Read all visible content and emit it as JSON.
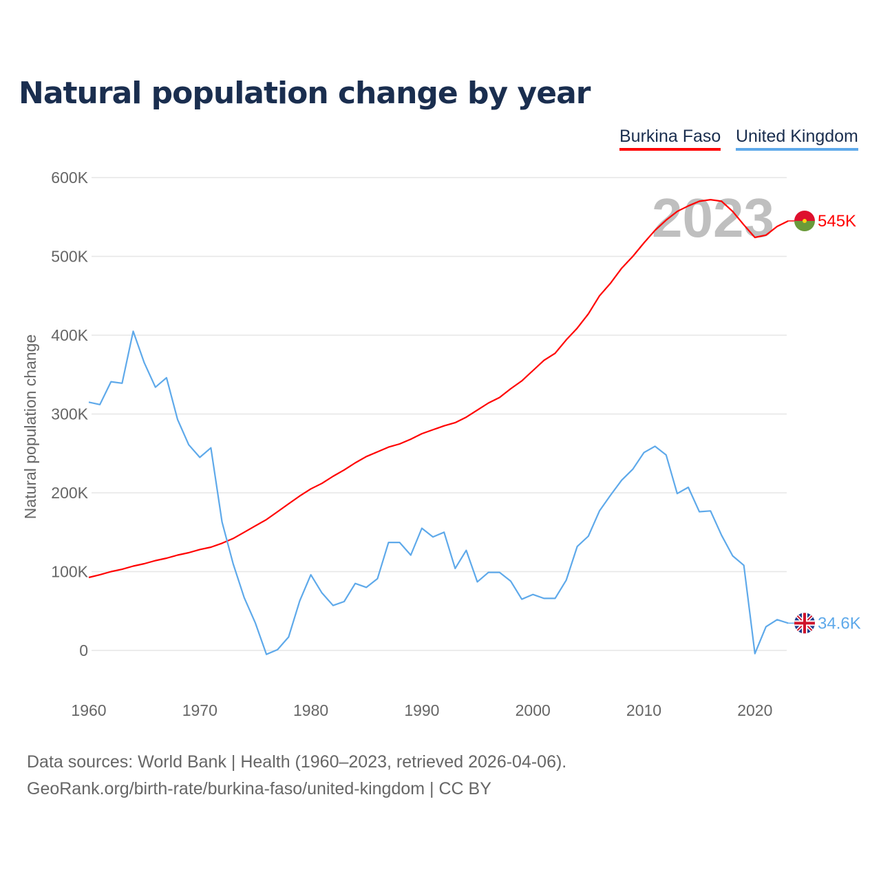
{
  "title": "Natural population change by year",
  "watermark_year": "2023",
  "footer": {
    "line1": "Data sources: World Bank | Health (1960–2023, retrieved 2026-04-06).",
    "line2": "GeoRank.org/birth-rate/burkina-faso/united-kingdom | CC BY"
  },
  "chart_data": {
    "type": "line",
    "title": "Natural population change by year",
    "xlabel": "",
    "ylabel": "Natural population change",
    "xlim": [
      1960,
      2023
    ],
    "ylim": [
      -50000,
      600000
    ],
    "yticks": [
      {
        "v": 0,
        "label": "0"
      },
      {
        "v": 100000,
        "label": "100K"
      },
      {
        "v": 200000,
        "label": "200K"
      },
      {
        "v": 300000,
        "label": "300K"
      },
      {
        "v": 400000,
        "label": "400K"
      },
      {
        "v": 500000,
        "label": "500K"
      },
      {
        "v": 600000,
        "label": "600K"
      }
    ],
    "xticks": [
      {
        "v": 1960,
        "label": "1960"
      },
      {
        "v": 1970,
        "label": "1970"
      },
      {
        "v": 1980,
        "label": "1980"
      },
      {
        "v": 1990,
        "label": "1990"
      },
      {
        "v": 2000,
        "label": "2000"
      },
      {
        "v": 2010,
        "label": "2010"
      },
      {
        "v": 2020,
        "label": "2020"
      }
    ],
    "grid": true,
    "legend_position": "top-right",
    "x_start": 1960,
    "series": [
      {
        "name": "Burkina Faso",
        "color": "#ff0000",
        "end_label": "545K",
        "flag": "burkina-faso-flag",
        "values": [
          92600,
          96000,
          100000,
          103000,
          107000,
          110000,
          114000,
          117000,
          121000,
          124000,
          128000,
          131000,
          136000,
          142000,
          150000,
          158000,
          166000,
          176000,
          186000,
          196000,
          205000,
          212000,
          221000,
          229000,
          238000,
          246000,
          252000,
          258000,
          262000,
          268000,
          275000,
          280000,
          285000,
          289000,
          296000,
          305000,
          314000,
          321000,
          332000,
          342000,
          355000,
          368000,
          377000,
          394000,
          409000,
          427000,
          450000,
          466000,
          485000,
          500000,
          517000,
          533000,
          546000,
          557000,
          564000,
          570000,
          572000,
          570000,
          557000,
          540000,
          524000,
          527000,
          538000,
          545000
        ]
      },
      {
        "name": "United Kingdom",
        "color": "#5ea9ea",
        "end_label": "34.6K",
        "flag": "united-kingdom-flag",
        "values": [
          315000,
          312000,
          341000,
          339000,
          405000,
          365000,
          334000,
          346000,
          293000,
          261000,
          245000,
          257000,
          163000,
          110000,
          67000,
          35000,
          -5000,
          1000,
          17000,
          63000,
          96000,
          73000,
          57000,
          62000,
          85000,
          80000,
          91000,
          137000,
          137000,
          121000,
          155000,
          144000,
          150000,
          104000,
          127000,
          87000,
          99000,
          99000,
          88000,
          65000,
          71000,
          66000,
          66000,
          89000,
          132000,
          145000,
          177000,
          197000,
          216000,
          230000,
          251000,
          259000,
          248000,
          199000,
          207000,
          176000,
          177000,
          146000,
          120000,
          108000,
          -4000,
          30000,
          39000,
          34600
        ]
      }
    ]
  }
}
